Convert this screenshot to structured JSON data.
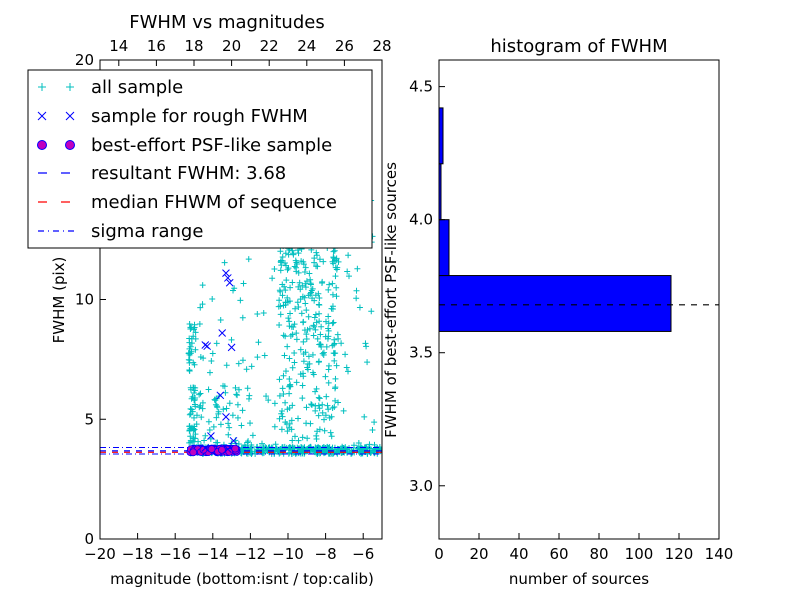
{
  "chart_data": [
    {
      "type": "scatter",
      "title": "FWHM vs magnitudes",
      "xlabel": "magnitude (bottom:isnt / top:calib)",
      "ylabel": "FWHM (pix)",
      "xlim": [
        -20,
        -5
      ],
      "ylim": [
        0,
        20
      ],
      "top_xlim": [
        13,
        28
      ],
      "x_ticks": [
        "−20",
        "−18",
        "−16",
        "−14",
        "−12",
        "−10",
        "−8",
        "−6"
      ],
      "x_tick_values": [
        -20,
        -18,
        -16,
        -14,
        -12,
        -10,
        -8,
        -6
      ],
      "y_ticks": [
        "0",
        "5",
        "10",
        "20"
      ],
      "y_tick_values": [
        0,
        5,
        10,
        20
      ],
      "top_ticks": [
        "14",
        "16",
        "18",
        "20",
        "22",
        "24",
        "26",
        "28"
      ],
      "top_tick_values": [
        14,
        16,
        18,
        20,
        22,
        24,
        26,
        28
      ],
      "series": [
        {
          "name": "all sample",
          "marker": "+",
          "color": "#00bfbf"
        },
        {
          "name": "sample for rough FWHM",
          "marker": "x",
          "color": "#0000ff",
          "points": [
            [
              -13.3,
              11.1
            ],
            [
              -13.1,
              10.7
            ],
            [
              -13.2,
              10.9
            ],
            [
              -14.4,
              8.1
            ],
            [
              -14.3,
              8.05
            ],
            [
              -13.5,
              8.6
            ],
            [
              -13.0,
              8.0
            ],
            [
              -13.6,
              6.0
            ],
            [
              -13.3,
              5.1
            ],
            [
              -14.1,
              4.3
            ],
            [
              -12.9,
              4.1
            ],
            [
              -14.4,
              3.8
            ],
            [
              -13.2,
              3.75
            ]
          ]
        },
        {
          "name": "best-effort PSF-like sample",
          "marker": "o",
          "color": "#bf00bf",
          "edge": "#0000ff",
          "x_range": [
            -15.2,
            -12.7
          ],
          "y_range": [
            3.62,
            3.78
          ]
        },
        {
          "name": "resultant FWHM: 3.68",
          "line": "dashed",
          "color": "#0000ff",
          "value": 3.68
        },
        {
          "name": "median FHWM of sequence",
          "line": "dashed",
          "color": "#ff0000",
          "value": 3.62
        },
        {
          "name": "sigma range",
          "line": "dashdot",
          "color": "#0000ff",
          "values": [
            3.55,
            3.82
          ]
        }
      ],
      "legend_location": "upper-left"
    },
    {
      "type": "bar",
      "orientation": "horizontal",
      "title": "histogram of FWHM",
      "xlabel": "number of sources",
      "ylabel": "FWHM of best-effort PSF-like sources",
      "xlim": [
        0,
        140
      ],
      "ylim": [
        2.8,
        4.6
      ],
      "x_ticks": [
        "0",
        "20",
        "40",
        "60",
        "80",
        "100",
        "120",
        "140"
      ],
      "x_tick_values": [
        0,
        20,
        40,
        60,
        80,
        100,
        120,
        140
      ],
      "y_ticks": [
        "3.0",
        "3.5",
        "4.0",
        "4.5"
      ],
      "y_tick_values": [
        3.0,
        3.5,
        4.0,
        4.5
      ],
      "bins": [
        {
          "from": 3.58,
          "to": 3.79,
          "count": 116
        },
        {
          "from": 3.79,
          "to": 4.0,
          "count": 5
        },
        {
          "from": 4.0,
          "to": 4.21,
          "count": 1
        },
        {
          "from": 4.21,
          "to": 4.42,
          "count": 2
        }
      ],
      "color": "#0000ff",
      "reference_line": 3.68
    }
  ]
}
